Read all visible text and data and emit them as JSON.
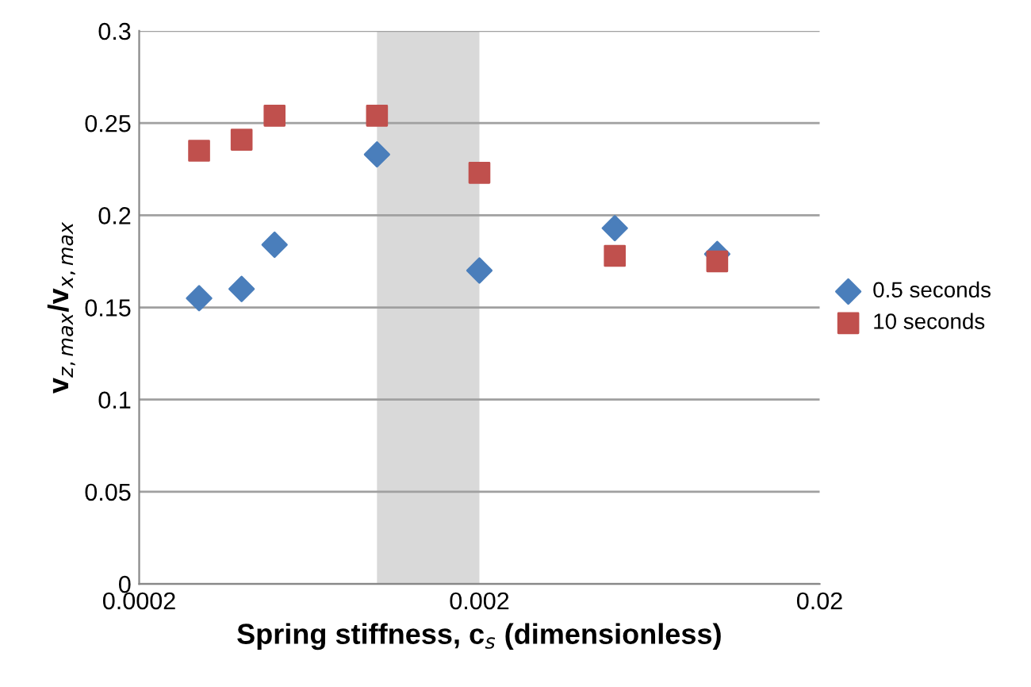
{
  "chart_data": {
    "type": "scatter",
    "xlabel": "Spring stiffness, c$_{s}$ (dimensionless)",
    "ylabel": "v$_{z,max}$/v$_{x,max}$",
    "log": "x",
    "xlim": [
      0.0002,
      0.02
    ],
    "xticks": [
      0.0002,
      0.002,
      0.02
    ],
    "ylim": [
      0,
      0.3
    ],
    "yticks": [
      0,
      0.05,
      0.1,
      0.15,
      0.2,
      0.25,
      0.3
    ],
    "grid": "y",
    "legend": "right",
    "series": [
      {
        "name": "0.5 seconds",
        "color": "#4a7ebb",
        "marker": "diamond",
        "x": [
          0.0003,
          0.0004,
          0.0005,
          0.001,
          0.002,
          0.005,
          0.01
        ],
        "values": [
          0.155,
          0.16,
          0.184,
          0.233,
          0.17,
          0.193,
          0.179
        ]
      },
      {
        "name": "10 seconds",
        "color": "#c0504d",
        "marker": "square",
        "x": [
          0.0003,
          0.0004,
          0.0005,
          0.001,
          0.002,
          0.005,
          0.01
        ],
        "values": [
          0.235,
          0.241,
          0.254,
          0.254,
          0.223,
          0.178,
          0.175
        ]
      }
    ],
    "bands": [
      {
        "axis": "x",
        "from": 0.001,
        "to": 0.002,
        "color": "#d9d9d9"
      }
    ]
  }
}
